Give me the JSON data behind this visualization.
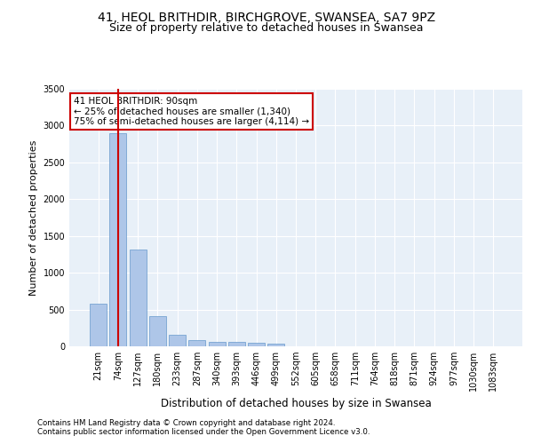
{
  "title": "41, HEOL BRITHDIR, BIRCHGROVE, SWANSEA, SA7 9PZ",
  "subtitle": "Size of property relative to detached houses in Swansea",
  "xlabel": "Distribution of detached houses by size in Swansea",
  "ylabel": "Number of detached properties",
  "categories": [
    "21sqm",
    "74sqm",
    "127sqm",
    "180sqm",
    "233sqm",
    "287sqm",
    "340sqm",
    "393sqm",
    "446sqm",
    "499sqm",
    "552sqm",
    "605sqm",
    "658sqm",
    "711sqm",
    "764sqm",
    "818sqm",
    "871sqm",
    "924sqm",
    "977sqm",
    "1030sqm",
    "1083sqm"
  ],
  "values": [
    575,
    2900,
    1320,
    410,
    155,
    90,
    60,
    55,
    45,
    35,
    0,
    0,
    0,
    0,
    0,
    0,
    0,
    0,
    0,
    0,
    0
  ],
  "bar_color": "#aec6e8",
  "bar_edge_color": "#6699cc",
  "vline_x": 1,
  "vline_color": "#cc0000",
  "annotation_text": "41 HEOL BRITHDIR: 90sqm\n← 25% of detached houses are smaller (1,340)\n75% of semi-detached houses are larger (4,114) →",
  "annotation_box_color": "#ffffff",
  "annotation_box_edge": "#cc0000",
  "ylim": [
    0,
    3500
  ],
  "yticks": [
    0,
    500,
    1000,
    1500,
    2000,
    2500,
    3000,
    3500
  ],
  "background_color": "#e8f0f8",
  "footer_line1": "Contains HM Land Registry data © Crown copyright and database right 2024.",
  "footer_line2": "Contains public sector information licensed under the Open Government Licence v3.0.",
  "title_fontsize": 10,
  "subtitle_fontsize": 9,
  "tick_fontsize": 7,
  "ylabel_fontsize": 8,
  "xlabel_fontsize": 8.5
}
